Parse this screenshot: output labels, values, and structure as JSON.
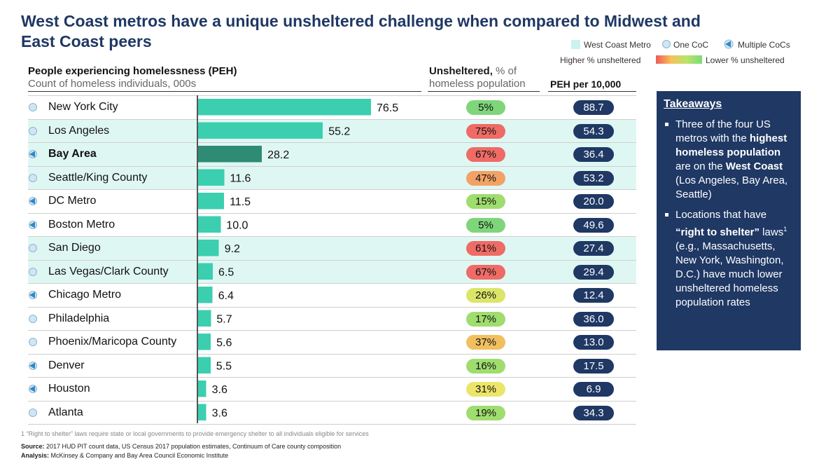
{
  "title": "West Coast metros have a unique unsheltered challenge when compared to Midwest and East Coast peers",
  "legend": {
    "west_coast": "West Coast Metro",
    "one_coc": "One CoC",
    "multiple_cocs": "Multiple CoCs",
    "higher": "Higher % unsheltered",
    "lower": "Lower % unsheltered"
  },
  "headers": {
    "peh_title": "People experiencing homelessness (PEH)",
    "peh_sub": "Count of homeless individuals, 000s",
    "unsheltered_bold": "Unsheltered,",
    "unsheltered_light": " % of",
    "unsheltered_sub": "homeless population",
    "per10k": "PEH per 10,000"
  },
  "colors": {
    "bar": "#3bcfb0",
    "bar_highlight": "#2e8b75",
    "west_row": "#dff7f3",
    "navy": "#1f3864"
  },
  "chart_data": {
    "type": "bar",
    "orientation": "horizontal",
    "title": "People experiencing homelessness (PEH)",
    "xlabel": "Count of homeless individuals, 000s",
    "xlim": [
      0,
      76.5
    ],
    "categories": [
      "New York City",
      "Los Angeles",
      "Bay Area",
      "Seattle/King County",
      "DC Metro",
      "Boston Metro",
      "San Diego",
      "Las Vegas/Clark County",
      "Chicago Metro",
      "Philadelphia",
      "Phoenix/Maricopa County",
      "Denver",
      "Houston",
      "Atlanta"
    ],
    "rows": [
      {
        "name": "New York City",
        "peh": 76.5,
        "peh_label": "76.5",
        "unsheltered": "5%",
        "per10k": "88.7",
        "coc": "one",
        "west": false,
        "pill": "#7fd67a"
      },
      {
        "name": "Los Angeles",
        "peh": 55.2,
        "peh_label": "55.2",
        "unsheltered": "75%",
        "per10k": "54.3",
        "coc": "one",
        "west": true,
        "pill": "#ef6b66"
      },
      {
        "name": "Bay Area",
        "peh": 28.2,
        "peh_label": "28.2",
        "unsheltered": "67%",
        "per10k": "36.4",
        "coc": "multiple",
        "west": true,
        "bold": true,
        "pill": "#ef6b66"
      },
      {
        "name": "Seattle/King County",
        "peh": 11.6,
        "peh_label": "11.6",
        "unsheltered": "47%",
        "per10k": "53.2",
        "coc": "one",
        "west": true,
        "pill": "#f3a266"
      },
      {
        "name": "DC Metro",
        "peh": 11.5,
        "peh_label": "11.5",
        "unsheltered": "15%",
        "per10k": "20.0",
        "coc": "multiple",
        "west": false,
        "pill": "#9fdd6e"
      },
      {
        "name": "Boston Metro",
        "peh": 10.0,
        "peh_label": "10.0",
        "unsheltered": "5%",
        "per10k": "49.6",
        "coc": "multiple",
        "west": false,
        "pill": "#7fd67a"
      },
      {
        "name": "San Diego",
        "peh": 9.2,
        "peh_label": "9.2",
        "unsheltered": "61%",
        "per10k": "27.4",
        "coc": "one",
        "west": true,
        "pill": "#ef6b66"
      },
      {
        "name": "Las Vegas/Clark County",
        "peh": 6.5,
        "peh_label": "6.5",
        "unsheltered": "67%",
        "per10k": "29.4",
        "coc": "one",
        "west": true,
        "pill": "#ef6b66"
      },
      {
        "name": "Chicago Metro",
        "peh": 6.4,
        "peh_label": "6.4",
        "unsheltered": "26%",
        "per10k": "12.4",
        "coc": "multiple",
        "west": false,
        "pill": "#dbe568"
      },
      {
        "name": "Philadelphia",
        "peh": 5.7,
        "peh_label": "5.7",
        "unsheltered": "17%",
        "per10k": "36.0",
        "coc": "one",
        "west": false,
        "pill": "#9fdd6e"
      },
      {
        "name": "Phoenix/Maricopa County",
        "peh": 5.6,
        "peh_label": "5.6",
        "unsheltered": "37%",
        "per10k": "13.0",
        "coc": "one",
        "west": false,
        "pill": "#f0c060"
      },
      {
        "name": "Denver",
        "peh": 5.5,
        "peh_label": "5.5",
        "unsheltered": "16%",
        "per10k": "17.5",
        "coc": "multiple",
        "west": false,
        "pill": "#9fdd6e"
      },
      {
        "name": "Houston",
        "peh": 3.6,
        "peh_label": "3.6",
        "unsheltered": "31%",
        "per10k": "6.9",
        "coc": "multiple",
        "west": false,
        "pill": "#ece56a"
      },
      {
        "name": "Atlanta",
        "peh": 3.6,
        "peh_label": "3.6",
        "unsheltered": "19%",
        "per10k": "34.3",
        "coc": "one",
        "west": false,
        "pill": "#9fdd6e"
      }
    ]
  },
  "takeaways": {
    "title": "Takeaways",
    "item1": {
      "a": "Three of the four US metros with the ",
      "b": "highest homeless population",
      "c": " are on the ",
      "d": "West Coast",
      "e": " (Los Angeles, Bay Area, Seattle)"
    },
    "item2": {
      "a": "Locations that have ",
      "b": "“right to shelter”",
      "c": " laws",
      "sup": "1",
      "d": " (e.g., Massachusetts, New York, Washington, D.C.) have much lower unsheltered homeless population rates"
    }
  },
  "footnote": "1 “Right to shelter” laws require state or local governments to provide emergency shelter to all individuals eligible for services",
  "source": {
    "label": "Source:",
    "text": " 2017 HUD PIT count data, US Census 2017 population estimates, Continuum of Care county composition"
  },
  "analysis": {
    "label": "Analysis:",
    "text": " McKinsey & Company and Bay Area Council Economic Institute"
  }
}
